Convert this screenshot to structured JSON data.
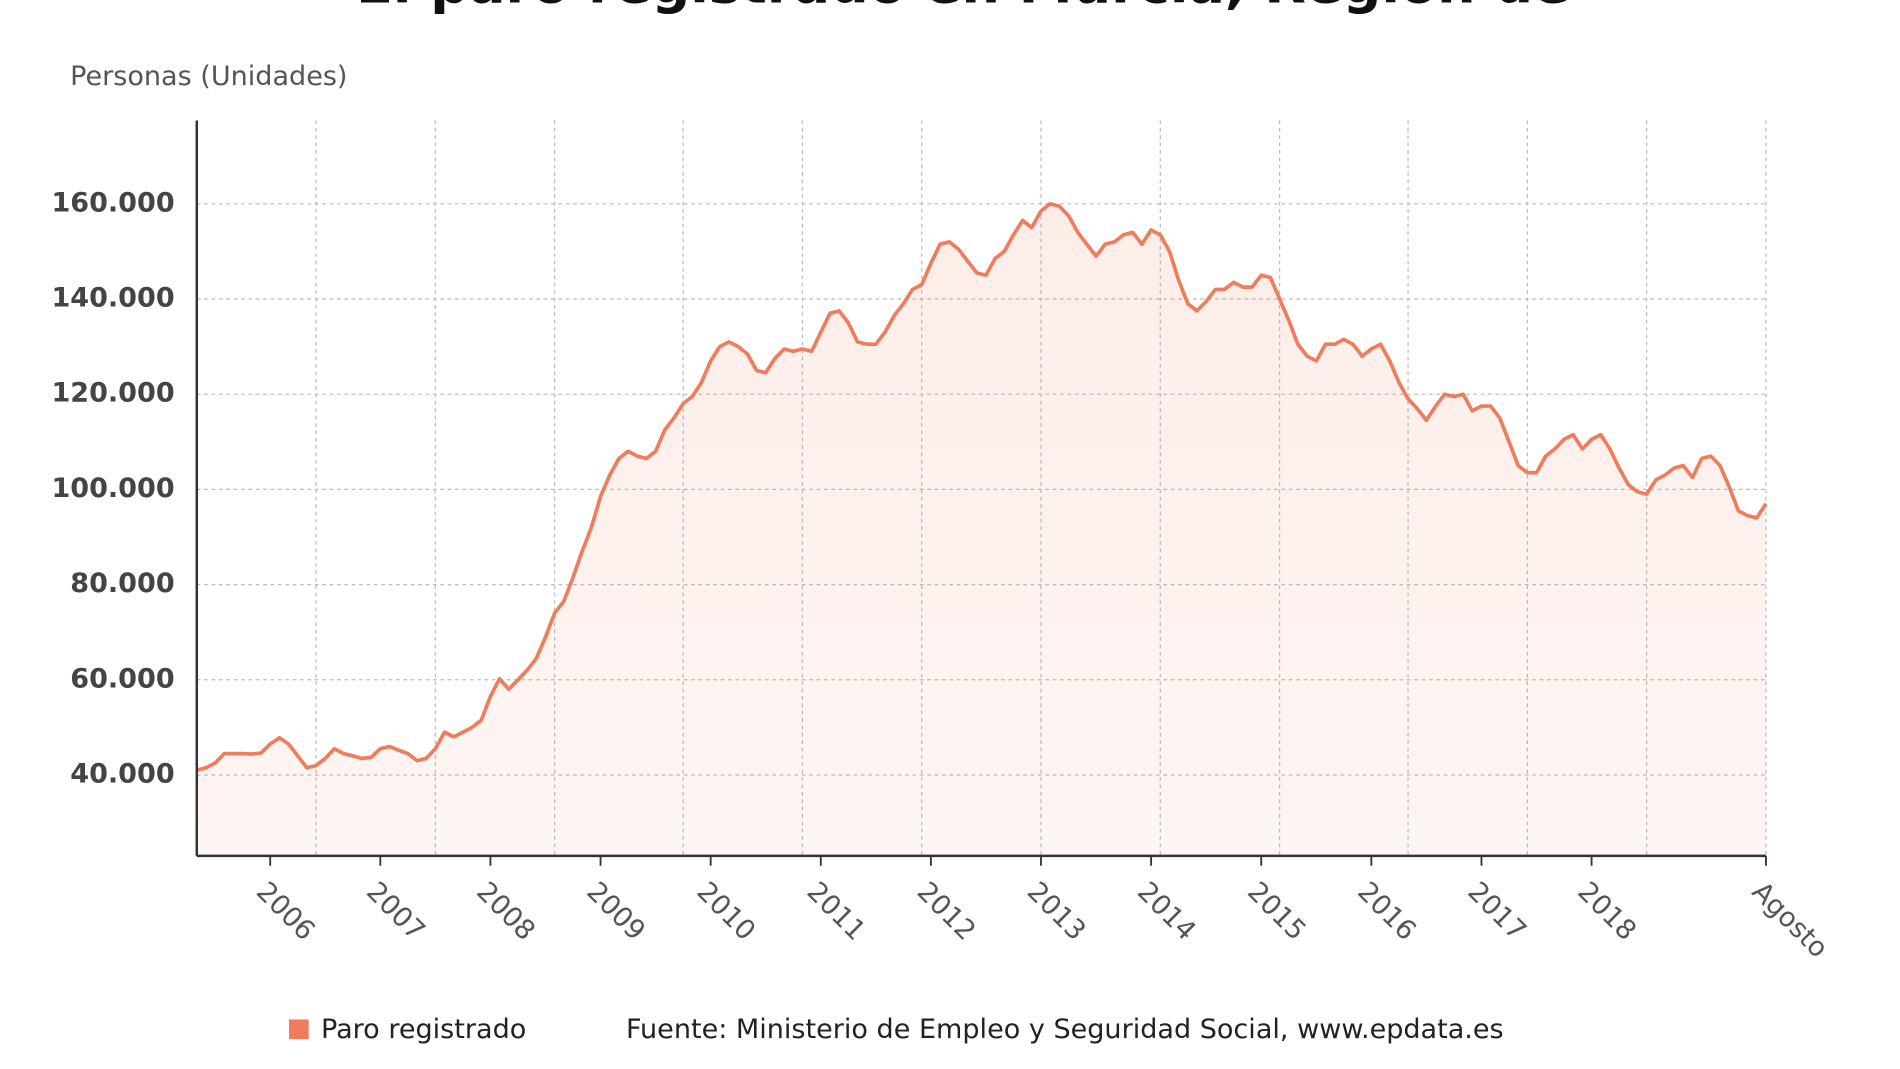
{
  "chart_data": {
    "type": "area-line",
    "title": "El paro registrado en Murcia, Región de",
    "y_label": "Personas (Unidades)",
    "source": "Fuente: Ministerio de Empleo y Seguridad Social, www.epdata.es",
    "categories": [
      null,
      null,
      null,
      null,
      null,
      null,
      null,
      null,
      "2006",
      null,
      null,
      null,
      null,
      null,
      null,
      null,
      null,
      null,
      null,
      null,
      "2007",
      null,
      null,
      null,
      null,
      null,
      null,
      null,
      null,
      null,
      null,
      null,
      "2008",
      null,
      null,
      null,
      null,
      null,
      null,
      null,
      null,
      null,
      null,
      null,
      "2009",
      null,
      null,
      null,
      null,
      null,
      null,
      null,
      null,
      null,
      null,
      null,
      "2010",
      null,
      null,
      null,
      null,
      null,
      null,
      null,
      null,
      null,
      null,
      null,
      "2011",
      null,
      null,
      null,
      null,
      null,
      null,
      null,
      null,
      null,
      null,
      null,
      "2012",
      null,
      null,
      null,
      null,
      null,
      null,
      null,
      null,
      null,
      null,
      null,
      "2013",
      null,
      null,
      null,
      null,
      null,
      null,
      null,
      null,
      null,
      null,
      null,
      "2014",
      null,
      null,
      null,
      null,
      null,
      null,
      null,
      null,
      null,
      null,
      null,
      "2015",
      null,
      null,
      null,
      null,
      null,
      null,
      null,
      null,
      null,
      null,
      null,
      "2016",
      null,
      null,
      null,
      null,
      null,
      null,
      null,
      null,
      null,
      null,
      null,
      "2017",
      null,
      null,
      null,
      null,
      null,
      null,
      null,
      null,
      null,
      null,
      null,
      "2018",
      null,
      null,
      null,
      null,
      null,
      null,
      null,
      null,
      null,
      null,
      null,
      null,
      null,
      null,
      null,
      null,
      null,
      null,
      "Agosto"
    ],
    "series": [
      {
        "name": "Paro registrado",
        "color": "#ef7d5c",
        "values": [
          41000,
          41500,
          42500,
          44500,
          44500,
          44500,
          44400,
          44600,
          46500,
          47800,
          46500,
          44000,
          41500,
          42000,
          43500,
          45500,
          44500,
          44000,
          43500,
          43700,
          45500,
          46000,
          45200,
          44500,
          43000,
          43500,
          45500,
          49000,
          48000,
          49000,
          50000,
          51500,
          56500,
          60200,
          58000,
          60000,
          62000,
          64500,
          69000,
          74000,
          76500,
          81500,
          87000,
          92000,
          98500,
          103000,
          106500,
          108000,
          107000,
          106500,
          108000,
          112500,
          115000,
          118000,
          119500,
          122500,
          127000,
          130000,
          131000,
          130000,
          128500,
          125000,
          124500,
          127500,
          129500,
          129000,
          129500,
          129000,
          133000,
          137000,
          137500,
          135000,
          131000,
          130500,
          130500,
          133000,
          136500,
          139000,
          142000,
          143000,
          147500,
          151500,
          152000,
          150500,
          148000,
          145500,
          145000,
          148500,
          150000,
          153500,
          156500,
          155000,
          158500,
          160000,
          159500,
          157500,
          154000,
          151500,
          149000,
          151500,
          152000,
          153500,
          154000,
          151500,
          154500,
          153500,
          150000,
          144000,
          139000,
          137500,
          139500,
          142000,
          142000,
          143500,
          142500,
          142500,
          145000,
          144500,
          140000,
          135500,
          130500,
          128000,
          127000,
          130500,
          130500,
          131500,
          130500,
          128000,
          129500,
          130500,
          127000,
          122500,
          119000,
          117000,
          114500,
          117500,
          120000,
          119500,
          120000,
          116500,
          117500,
          117500,
          115000,
          110000,
          105000,
          103500,
          103500,
          107000,
          108500,
          110500,
          111500,
          108500,
          110500,
          111500,
          108500,
          104500,
          101000,
          99500,
          99000,
          102000,
          103000,
          104500,
          105000,
          102500,
          106500,
          107000,
          105000,
          100500,
          95500,
          94500,
          94000,
          97000
        ]
      }
    ],
    "ylim": [
      23000,
      177500
    ],
    "yticks": [
      {
        "value": 40000,
        "label": "40.000"
      },
      {
        "value": 60000,
        "label": "60.000"
      },
      {
        "value": 80000,
        "label": "80.000"
      },
      {
        "value": 100000,
        "label": "100.000"
      },
      {
        "value": 120000,
        "label": "120.000"
      },
      {
        "value": 140000,
        "label": "140.000"
      },
      {
        "value": 160000,
        "label": "160.000"
      }
    ],
    "grid": true
  }
}
